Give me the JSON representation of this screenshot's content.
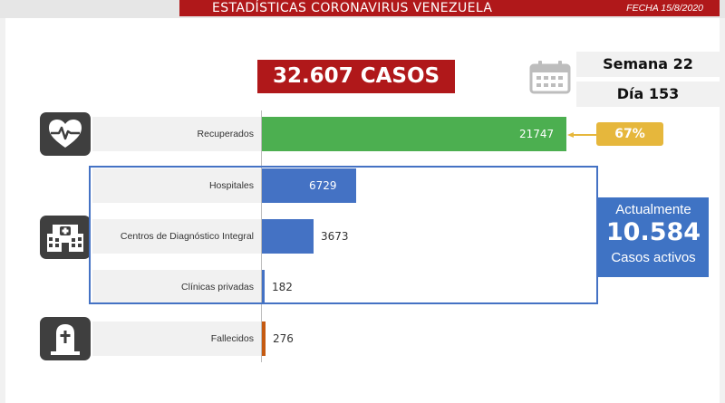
{
  "header": {
    "title": "ESTADÍSTICAS CORONAVIRUS VENEZUELA",
    "date": "FECHA 15/8/2020"
  },
  "summary": {
    "total_label": "32.607 CASOS",
    "week_label": "Semana 22",
    "day_label": "Día 153",
    "recovered_percent_label": "67%",
    "active": {
      "top_text": "Actualmente",
      "value_text": "10.584",
      "bottom_text": "Casos activos"
    }
  },
  "icons": {
    "calendar": "calendar-icon",
    "recovered": "heart-pulse-icon",
    "hospital": "hospital-icon",
    "deceased": "tombstone-icon"
  },
  "colors": {
    "brand_red": "#b0181a",
    "recovered": "#4caf50",
    "hospitales": "#4472c4",
    "cdi": "#4472c4",
    "clinicas": "#4472c4",
    "fallecidos": "#c55a11",
    "percent_badge": "#e6b73c",
    "active_box": "#3f73c4"
  },
  "chart_data": {
    "type": "bar",
    "orientation": "horizontal",
    "categories": [
      "Recuperados",
      "Hospitales",
      "Centros de Diagnóstico Integral",
      "Clínicas privadas",
      "Fallecidos"
    ],
    "values": [
      21747,
      6729,
      3673,
      182,
      276
    ],
    "value_labels": [
      "21747",
      "6729",
      "3673",
      "182",
      "276"
    ],
    "xlim": [
      0,
      21747
    ],
    "grid": false
  }
}
